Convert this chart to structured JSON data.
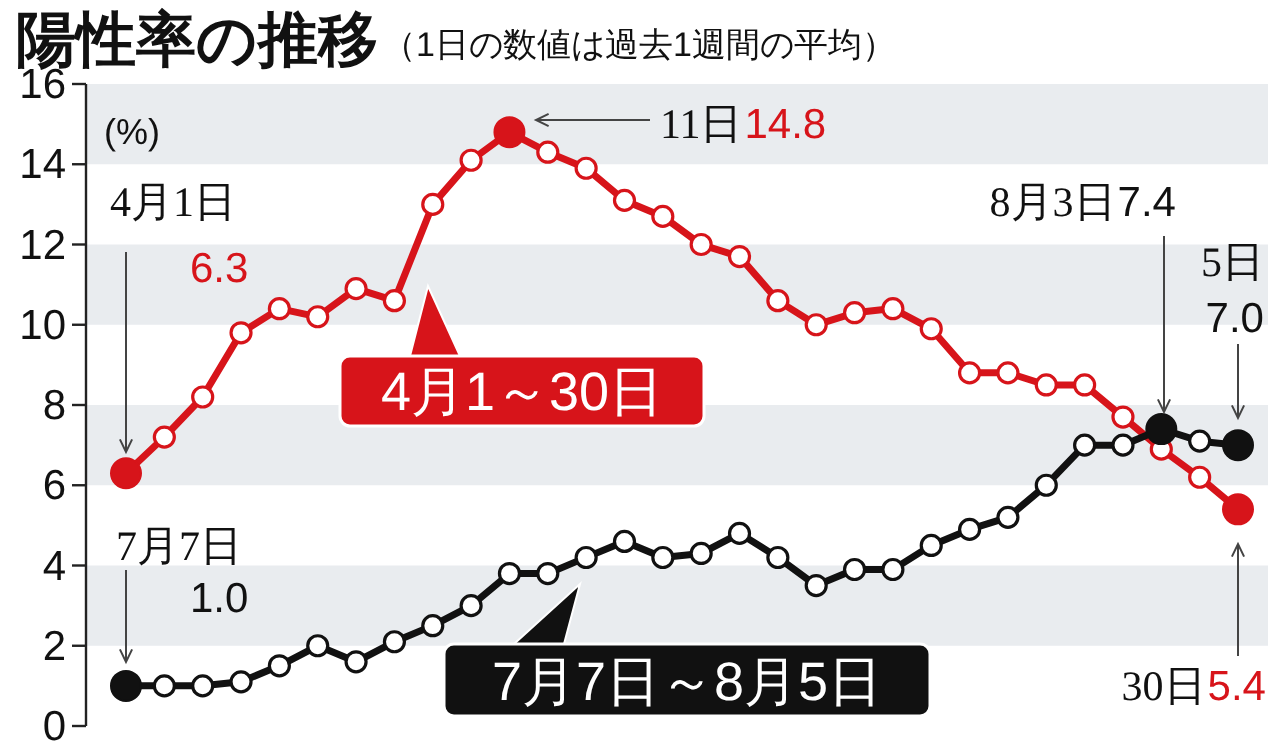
{
  "chart_data": {
    "type": "line",
    "title": "陽性率の推移",
    "subtitle": "（1日の数値は過去1週間の平均）",
    "ylabel": "(%)",
    "categories": [
      null,
      null,
      null,
      null,
      null,
      null,
      null,
      null,
      null,
      null,
      null,
      null,
      null,
      null,
      null,
      null,
      null,
      null,
      null,
      null,
      null,
      null,
      null,
      null,
      null,
      null,
      null,
      null,
      null,
      null
    ],
    "series": [
      {
        "name": "4月1～30日",
        "color": "#d7141a",
        "values": [
          6.3,
          7.2,
          8.2,
          9.8,
          10.4,
          10.2,
          10.9,
          10.6,
          13.0,
          14.1,
          14.8,
          14.3,
          13.9,
          13.1,
          12.7,
          12.0,
          11.7,
          10.6,
          10.0,
          10.3,
          10.4,
          9.9,
          8.8,
          8.8,
          8.5,
          8.5,
          7.7,
          6.9,
          6.2,
          5.4
        ]
      },
      {
        "name": "7月7日～8月5日",
        "color": "#111111",
        "values": [
          1.0,
          1.0,
          1.0,
          1.1,
          1.5,
          2.0,
          1.6,
          2.1,
          2.5,
          3.0,
          3.8,
          3.8,
          4.2,
          4.6,
          4.2,
          4.3,
          4.8,
          4.2,
          3.5,
          3.9,
          3.9,
          4.5,
          4.9,
          5.2,
          6.0,
          7.0,
          7.0,
          7.4,
          7.1,
          7.0
        ]
      }
    ],
    "ylim": [
      0,
      16
    ],
    "yticks": [
      0,
      2,
      4,
      6,
      8,
      10,
      12,
      14,
      16
    ],
    "marker": "circle",
    "line_style": "solid",
    "tick_labels": "y",
    "legend": "center",
    "bands": [
      {
        "axis": "y",
        "from": 2,
        "to": 4,
        "color": "#e9ecef"
      },
      {
        "axis": "y",
        "from": 6,
        "to": 8,
        "color": "#e9ecef"
      },
      {
        "axis": "y",
        "from": 10,
        "to": 12,
        "color": "#e9ecef"
      },
      {
        "axis": "y",
        "from": 14,
        "to": 16,
        "color": "#e9ecef"
      }
    ],
    "annotations": [
      "4月1日",
      "6.3",
      "11日",
      "14.8",
      "8月3日",
      "7.4",
      "5日",
      "7.0",
      "30日",
      "5.4",
      "7月7日",
      "1.0"
    ]
  }
}
